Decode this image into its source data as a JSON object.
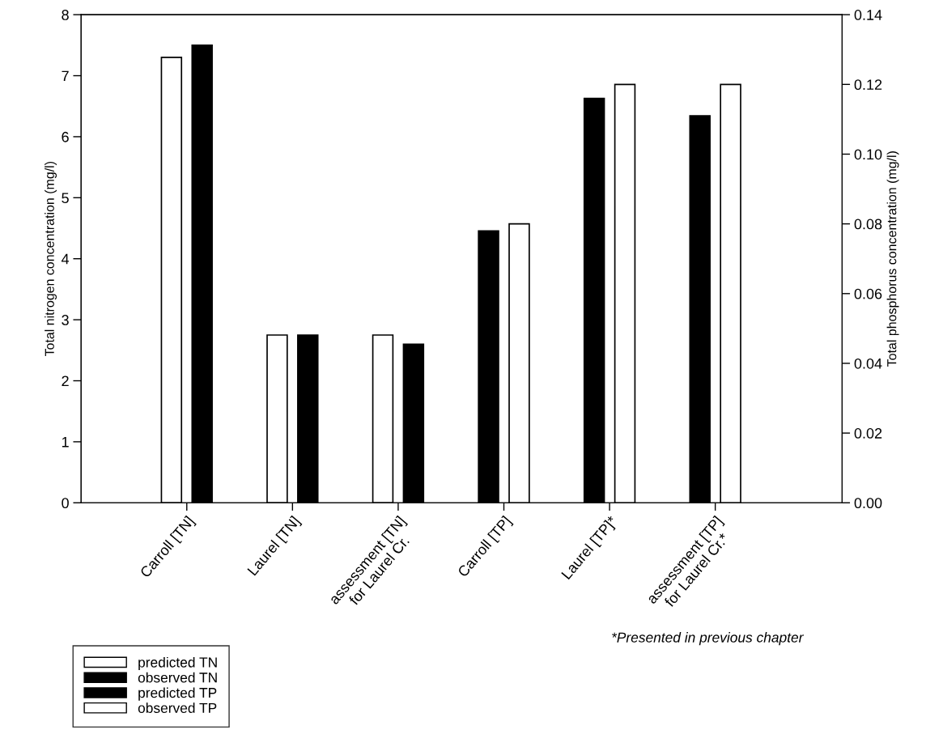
{
  "chart_data": {
    "type": "bar",
    "categories": [
      "Carroll [TN]",
      "Laurel [TN]",
      "assessment [TN]\nfor Laurel Cr.",
      "Carroll [TP]",
      "Laurel [TP]*",
      "assessment [TP]\nfor Laurel Cr.*"
    ],
    "series": [
      {
        "name": "predicted TN",
        "color": "#ffffff",
        "values": [
          7.3,
          2.75,
          2.75,
          null,
          null,
          null
        ]
      },
      {
        "name": "observed TN",
        "color": "#000000",
        "values": [
          7.5,
          2.75,
          2.6,
          null,
          null,
          null
        ]
      },
      {
        "name": "predicted TP",
        "color": "#000000",
        "axis": "y2",
        "values": [
          null,
          null,
          null,
          0.078,
          0.116,
          0.111
        ]
      },
      {
        "name": "observed TP",
        "color": "#ffffff",
        "axis": "y2",
        "values": [
          null,
          null,
          null,
          0.08,
          0.12,
          0.12
        ]
      }
    ],
    "ylabel": "Total nitrogen concentration (mg/l)",
    "y2label": "Total phosphorus concentration (mg/l)",
    "ylim": [
      0,
      8
    ],
    "yticks": [
      0,
      1,
      2,
      3,
      4,
      5,
      6,
      7,
      8
    ],
    "y2lim": [
      0,
      0.14
    ],
    "y2ticks": [
      {
        "value": 0,
        "label": "0.00"
      },
      {
        "value": 0.02,
        "label": "0.02"
      },
      {
        "value": 0.04,
        "label": "0.04"
      },
      {
        "value": 0.06,
        "label": "0.06"
      },
      {
        "value": 0.08,
        "label": "0.08"
      },
      {
        "value": 0.1,
        "label": "0.10"
      },
      {
        "value": 0.12,
        "label": "0.12"
      },
      {
        "value": 0.14,
        "label": "0.14"
      }
    ],
    "legend": "bottom left",
    "grid": false,
    "annotations": [
      "*Presented in previous chapter"
    ]
  }
}
